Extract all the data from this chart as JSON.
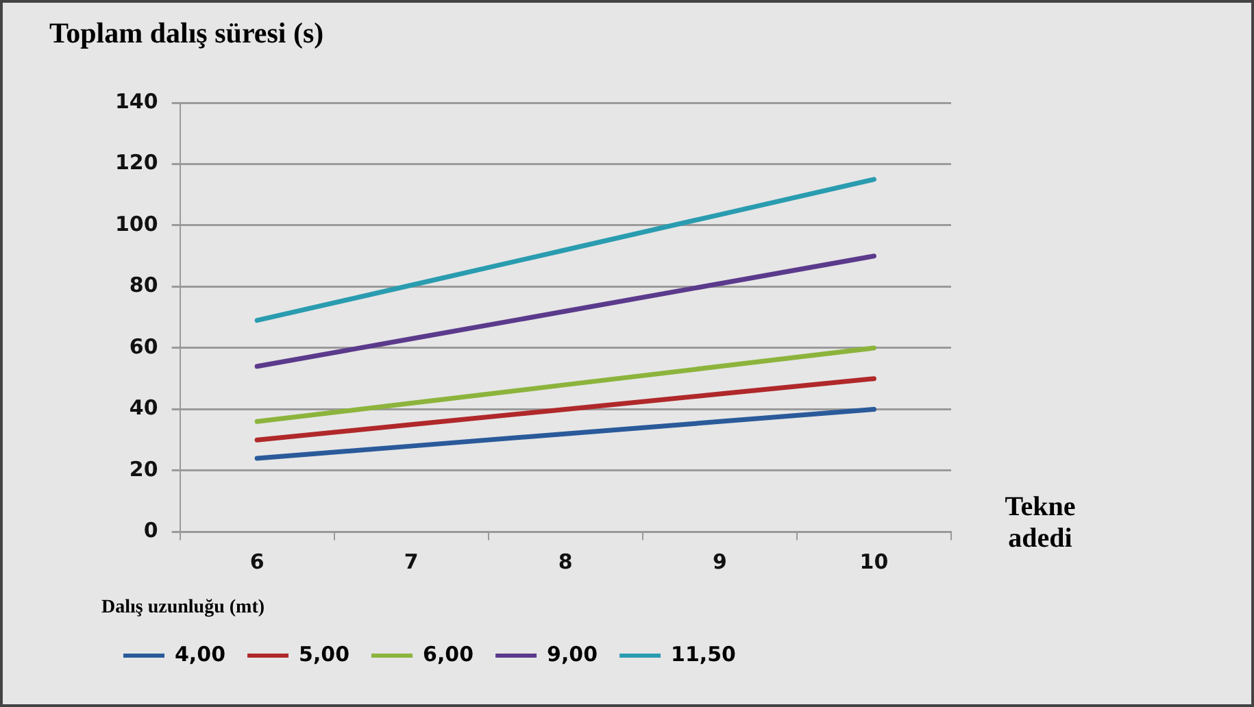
{
  "chart_data": {
    "type": "line",
    "title": "Toplam dalış süresi (s)",
    "xlabel": "Tekne adedi",
    "legend_title": "Dalış uzunluğu (mt)",
    "categories": [
      "6",
      "7",
      "8",
      "9",
      "10"
    ],
    "ylim": [
      0,
      140
    ],
    "yticks": [
      0,
      20,
      40,
      60,
      80,
      100,
      120,
      140
    ],
    "grid": "y",
    "legend": "bottom",
    "marker": "none",
    "line_style": "solid",
    "series": [
      {
        "name": "4,00",
        "color": "#2a5a9a",
        "values": [
          24,
          28,
          32,
          36,
          40
        ]
      },
      {
        "name": "5,00",
        "color": "#b0282a",
        "values": [
          30,
          35,
          40,
          45,
          50
        ]
      },
      {
        "name": "6,00",
        "color": "#8cb43c",
        "values": [
          36,
          42,
          48,
          54,
          60
        ]
      },
      {
        "name": "9,00",
        "color": "#5b3a8c",
        "values": [
          54,
          63,
          72,
          81,
          90
        ]
      },
      {
        "name": "11,50",
        "color": "#2a9cb0",
        "values": [
          69,
          80.5,
          92,
          103.5,
          115
        ]
      }
    ]
  }
}
